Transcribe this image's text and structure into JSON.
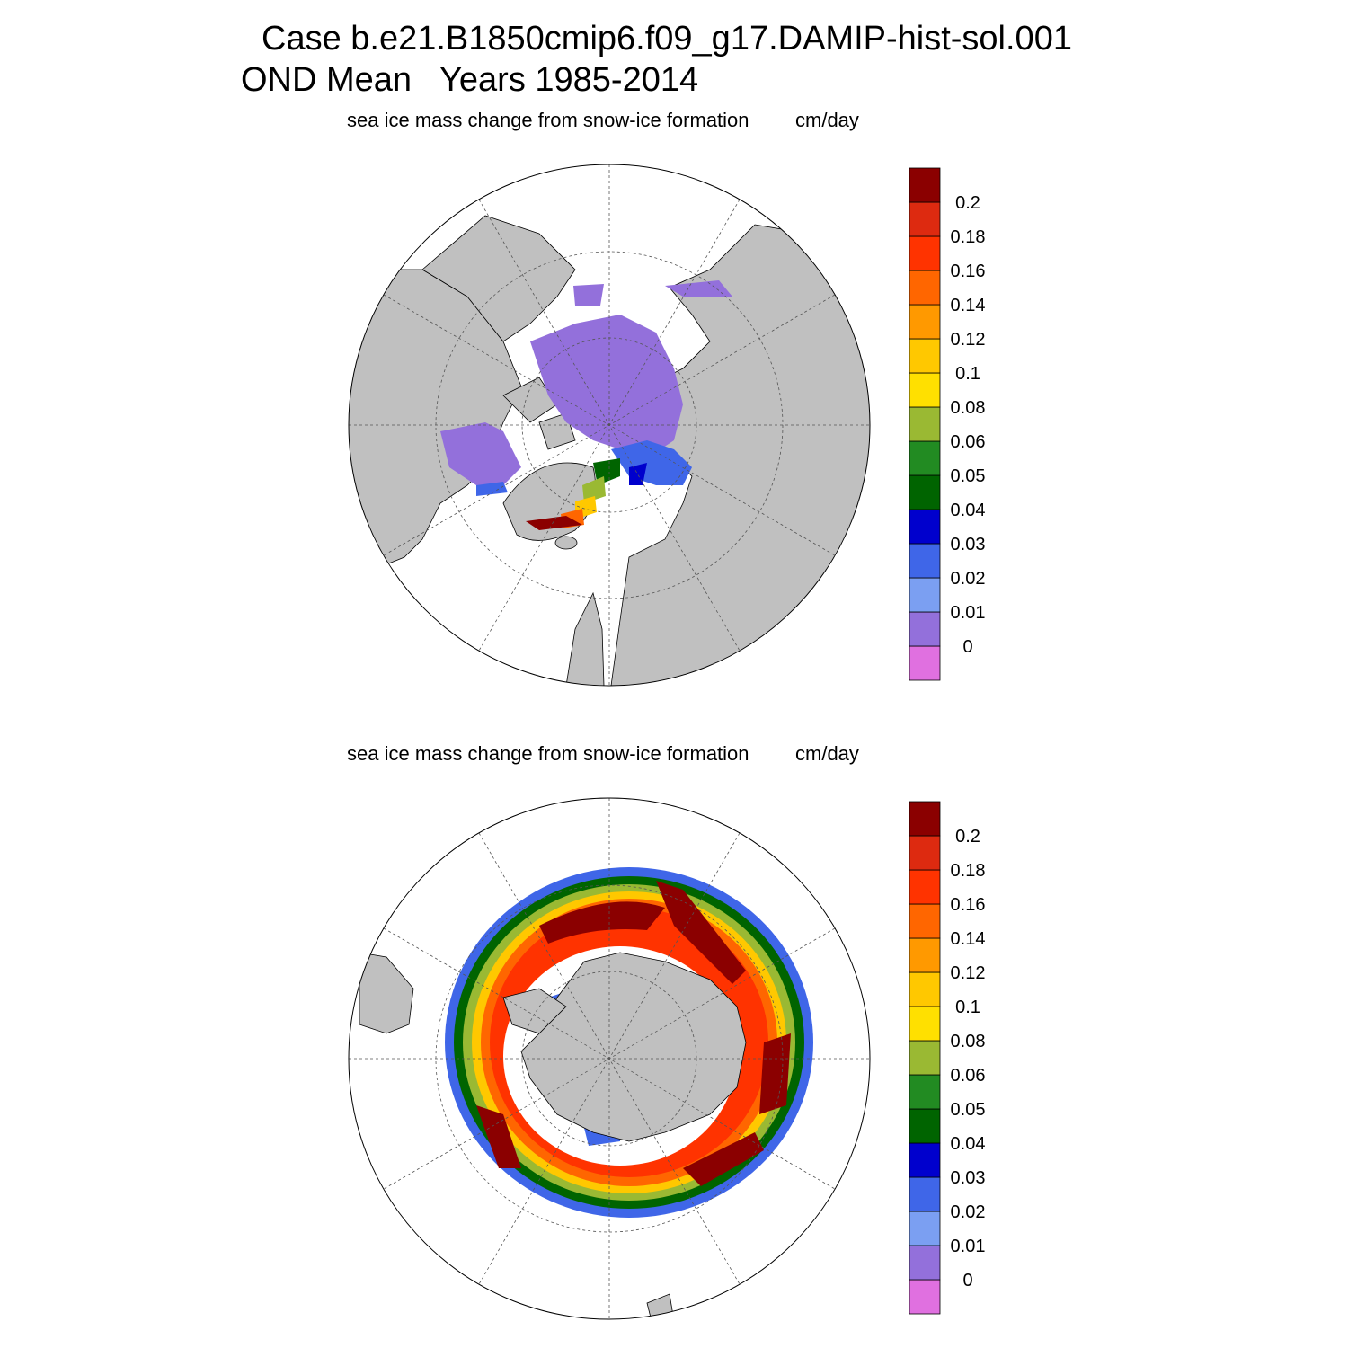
{
  "figure": {
    "title_line1": "Case b.e21.B1850cmip6.f09_g17.DAMIP-hist-sol.001",
    "title_line2": "OND Mean   Years 1985-2014"
  },
  "panels": [
    {
      "hemisphere": "north",
      "variable_label": "sea ice mass change from snow-ice formation",
      "units_label": "cm/day"
    },
    {
      "hemisphere": "south",
      "variable_label": "sea ice mass change from snow-ice formation",
      "units_label": "cm/day"
    }
  ],
  "colorbar": {
    "colors_bottom_to_top": [
      "#e070e0",
      "#9370db",
      "#7b9ff2",
      "#3f66e8",
      "#0000cd",
      "#006400",
      "#228b22",
      "#9ab933",
      "#ffe000",
      "#ffc800",
      "#ff9900",
      "#ff6600",
      "#ff3300",
      "#dd2a10",
      "#8b0000"
    ],
    "labels_bottom_to_top": [
      "0",
      "0.01",
      "0.02",
      "0.03",
      "0.04",
      "0.05",
      "0.06",
      "0.08",
      "0.1",
      "0.12",
      "0.14",
      "0.16",
      "0.18",
      "0.2"
    ]
  },
  "map_colors": {
    "land": "#c0c0c0",
    "ocean": "#ffffff",
    "grid": "#555555"
  }
}
